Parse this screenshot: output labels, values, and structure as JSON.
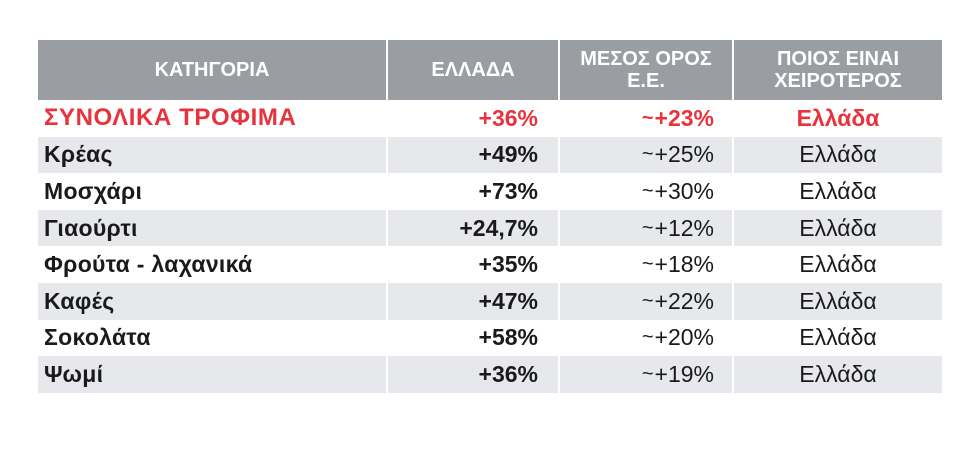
{
  "table": {
    "headers": [
      "ΚΑΤΗΓΟΡΙΑ",
      "ΕΛΛΑΔΑ",
      "ΜΕΣΟΣ ΟΡΟΣ Ε.Ε.",
      "ΠΟΙΟΣ ΕΙΝΑΙ ΧΕΙΡΟΤΕΡΟΣ"
    ],
    "rows": [
      {
        "category": "ΣΥΝΟΛΙΚΑ ΤΡΟΦΙΜΑ",
        "greece": "+36%",
        "eu_avg": "+23%",
        "worst": "Ελλάδα",
        "highlight": true
      },
      {
        "category": "Κρέας",
        "greece": "+49%",
        "eu_avg": "+25%",
        "worst": "Ελλάδα"
      },
      {
        "category": "Μοσχάρι",
        "greece": "+73%",
        "eu_avg": "+30%",
        "worst": "Ελλάδα"
      },
      {
        "category": "Γιαούρτι",
        "greece": "+24,7%",
        "eu_avg": "+12%",
        "worst": "Ελλάδα"
      },
      {
        "category": "Φρούτα - λαχανικά",
        "greece": "+35%",
        "eu_avg": "+18%",
        "worst": "Ελλάδα"
      },
      {
        "category": "Καφές",
        "greece": "+47%",
        "eu_avg": "+22%",
        "worst": "Ελλάδα"
      },
      {
        "category": "Σοκολάτα",
        "greece": "+58%",
        "eu_avg": "+20%",
        "worst": "Ελλάδα"
      },
      {
        "category": "Ψωμί",
        "greece": "+36%",
        "eu_avg": "+19%",
        "worst": "Ελλάδα"
      }
    ],
    "approx_symbol": "~",
    "colors": {
      "header_bg": "#9a9ea3",
      "shaded_row": "#e6e8eb",
      "highlight": "#e8323c"
    }
  }
}
